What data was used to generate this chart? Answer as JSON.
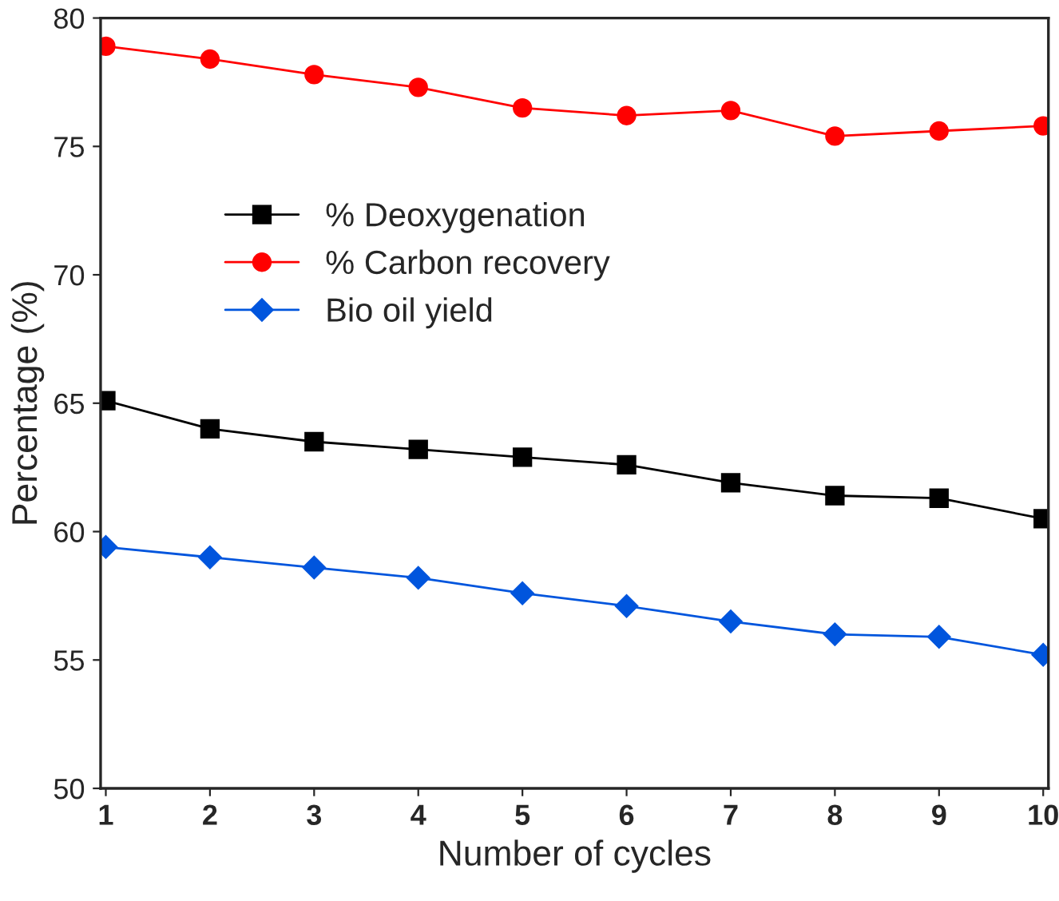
{
  "chart_data": {
    "type": "line",
    "xlabel": "Number of cycles",
    "ylabel": "Percentage (%)",
    "x": [
      1,
      2,
      3,
      4,
      5,
      6,
      7,
      8,
      9,
      10
    ],
    "series": [
      {
        "name": "% Deoxygenation",
        "color": "#000000",
        "marker": "square",
        "values": [
          65.1,
          64.0,
          63.5,
          63.2,
          62.9,
          62.6,
          61.9,
          61.4,
          61.3,
          60.5
        ]
      },
      {
        "name": "% Carbon recovery",
        "color": "#ff0000",
        "marker": "circle",
        "values": [
          78.9,
          78.4,
          77.8,
          77.3,
          76.5,
          76.2,
          76.4,
          75.4,
          75.6,
          75.8
        ]
      },
      {
        "name": "Bio oil yield",
        "color": "#0055dd",
        "marker": "diamond",
        "values": [
          59.4,
          59.0,
          58.6,
          58.2,
          57.6,
          57.1,
          56.5,
          56.0,
          55.9,
          55.2
        ]
      }
    ],
    "xlim": [
      0.95,
      10.05
    ],
    "xticks": [
      1,
      2,
      3,
      4,
      5,
      6,
      7,
      8,
      9,
      10
    ],
    "ylim": [
      50,
      80
    ],
    "yticks": [
      50,
      55,
      60,
      65,
      70,
      75,
      80
    ],
    "grid": false,
    "legend": "top left",
    "line_style": "solid"
  }
}
